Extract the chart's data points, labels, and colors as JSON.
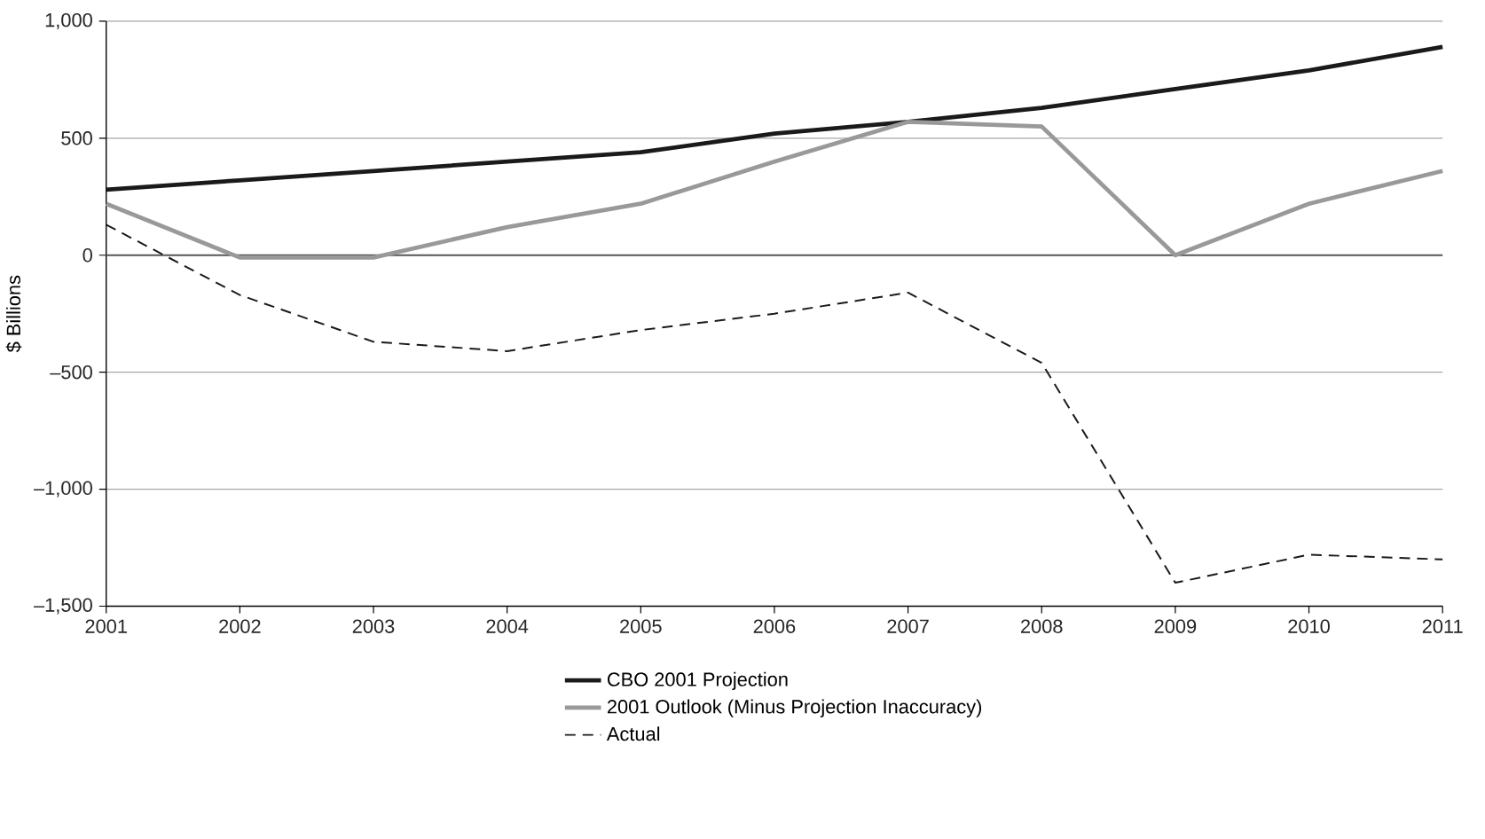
{
  "chart_data": {
    "type": "line",
    "ylabel": "$ Billions",
    "x": [
      2001,
      2002,
      2003,
      2004,
      2005,
      2006,
      2007,
      2008,
      2009,
      2010,
      2011
    ],
    "series": [
      {
        "name": "CBO 2001 Projection",
        "color": "#1a1a1a",
        "line_style": "solid",
        "values": [
          280,
          320,
          360,
          400,
          440,
          520,
          570,
          630,
          710,
          790,
          890
        ]
      },
      {
        "name": "2001 Outlook (Minus Projection Inaccuracy)",
        "color": "#999999",
        "line_style": "solid",
        "values": [
          220,
          -10,
          -10,
          120,
          220,
          400,
          570,
          550,
          0,
          220,
          360
        ]
      },
      {
        "name": "Actual",
        "color": "#1a1a1a",
        "line_style": "dashed",
        "values": [
          130,
          -170,
          -370,
          -410,
          -320,
          -250,
          -160,
          -460,
          -1400,
          -1280,
          -1300
        ]
      }
    ],
    "xlim": [
      2001,
      2011
    ],
    "xticks": [
      2001,
      2002,
      2003,
      2004,
      2005,
      2006,
      2007,
      2008,
      2009,
      2010,
      2011
    ],
    "ylim": [
      -1500,
      1000
    ],
    "yticks": [
      {
        "value": -1500,
        "label": "–1,500"
      },
      {
        "value": -1000,
        "label": "–1,000"
      },
      {
        "value": -500,
        "label": "–500"
      },
      0,
      500,
      {
        "value": 1000,
        "label": "1,000"
      }
    ],
    "ref_lines": [
      {
        "axis": "y",
        "value": 0,
        "color": "#595959"
      }
    ],
    "grid": "y",
    "legend": "bottom",
    "marker": "none"
  }
}
